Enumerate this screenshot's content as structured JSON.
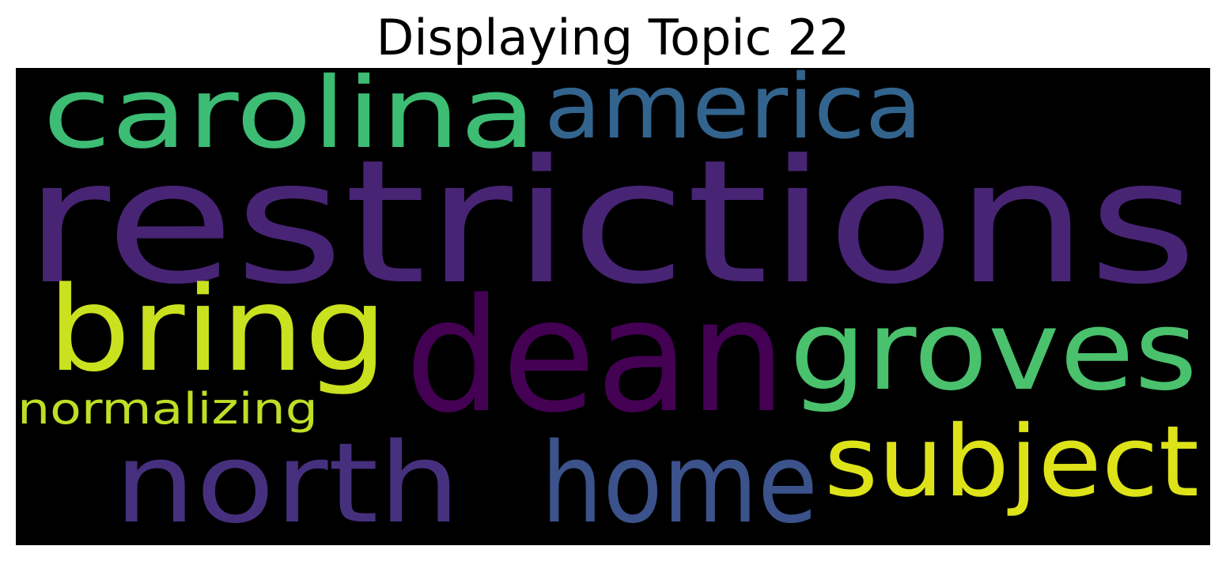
{
  "title": "Displaying Topic 22",
  "wordcloud": {
    "background": "#000000",
    "words": [
      {
        "text": "restrictions",
        "color": "#482475"
      },
      {
        "text": "dean",
        "color": "#440154"
      },
      {
        "text": "groves",
        "color": "#4ac16d"
      },
      {
        "text": "carolina",
        "color": "#3dbc74"
      },
      {
        "text": "america",
        "color": "#32648e"
      },
      {
        "text": "bring",
        "color": "#cae11f"
      },
      {
        "text": "north",
        "color": "#46307e"
      },
      {
        "text": "home",
        "color": "#3b528b"
      },
      {
        "text": "subject",
        "color": "#dde318"
      },
      {
        "text": "normalizing",
        "color": "#bddf26"
      }
    ]
  }
}
